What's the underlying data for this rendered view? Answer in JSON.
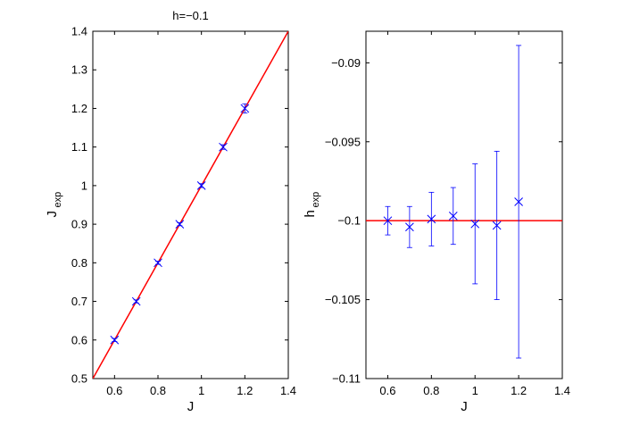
{
  "chart_data": [
    {
      "type": "scatter",
      "title": "h=−0.1",
      "xlabel": "J",
      "ylabel": "J",
      "ylabel_sub": "exp",
      "xlim": [
        0.5,
        1.4
      ],
      "ylim": [
        0.5,
        1.4
      ],
      "xticks": [
        "0.6",
        "0.8",
        "1",
        "1.2",
        "1.4"
      ],
      "xtick_values": [
        0.6,
        0.8,
        1.0,
        1.2,
        1.4
      ],
      "yticks": [
        "0.5",
        "0.6",
        "0.7",
        "0.8",
        "0.9",
        "1",
        "1.1",
        "1.2",
        "1.3",
        "1.4"
      ],
      "ytick_values": [
        0.5,
        0.6,
        0.7,
        0.8,
        0.9,
        1.0,
        1.1,
        1.2,
        1.3,
        1.4
      ],
      "line": {
        "color": "#ff0000",
        "x": [
          0.5,
          1.4
        ],
        "y": [
          0.5,
          1.4
        ]
      },
      "marker_color": "#0000ff",
      "points": [
        {
          "x": 0.6,
          "y": 0.6,
          "err": 0.004
        },
        {
          "x": 0.7,
          "y": 0.7,
          "err": 0.004
        },
        {
          "x": 0.8,
          "y": 0.8,
          "err": 0.004
        },
        {
          "x": 0.9,
          "y": 0.9,
          "err": 0.004
        },
        {
          "x": 1.0,
          "y": 1.0,
          "err": 0.005
        },
        {
          "x": 1.1,
          "y": 1.1,
          "err": 0.006
        },
        {
          "x": 1.2,
          "y": 1.2,
          "err": 0.012
        }
      ]
    },
    {
      "type": "scatter",
      "title": "",
      "xlabel": "J",
      "ylabel": "h",
      "ylabel_sub": "exp",
      "xlim": [
        0.5,
        1.4
      ],
      "ylim": [
        -0.11,
        -0.088
      ],
      "xticks": [
        "0.6",
        "0.8",
        "1",
        "1.2",
        "1.4"
      ],
      "xtick_values": [
        0.6,
        0.8,
        1.0,
        1.2,
        1.4
      ],
      "yticks": [
        "−0.11",
        "−0.105",
        "−0.1",
        "−0.095",
        "−0.09"
      ],
      "ytick_values": [
        -0.11,
        -0.105,
        -0.1,
        -0.095,
        -0.09
      ],
      "line": {
        "color": "#ff0000",
        "x": [
          0.5,
          1.4
        ],
        "y": [
          -0.1,
          -0.1
        ]
      },
      "marker_color": "#0000ff",
      "points": [
        {
          "x": 0.6,
          "y": -0.1,
          "err": 0.0009
        },
        {
          "x": 0.7,
          "y": -0.1004,
          "err": 0.0013
        },
        {
          "x": 0.8,
          "y": -0.0999,
          "err": 0.0017
        },
        {
          "x": 0.9,
          "y": -0.0997,
          "err": 0.0018
        },
        {
          "x": 1.0,
          "y": -0.1002,
          "err": 0.0038
        },
        {
          "x": 1.1,
          "y": -0.1003,
          "err": 0.0047
        },
        {
          "x": 1.2,
          "y": -0.0988,
          "err": 0.0099
        }
      ]
    }
  ]
}
